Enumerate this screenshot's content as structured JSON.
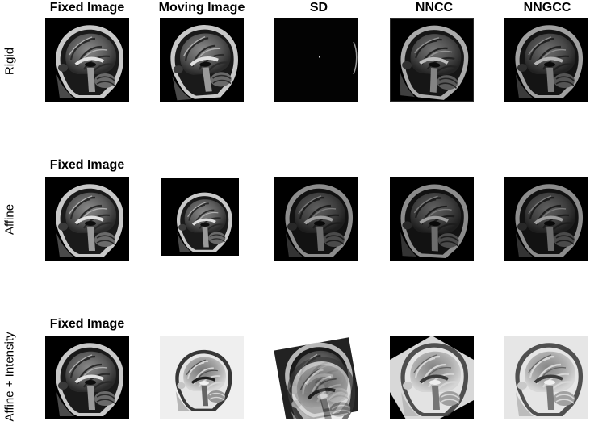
{
  "column_titles": [
    "Fixed Image",
    "Moving Image",
    "SD",
    "NNCC",
    "NNGCC"
  ],
  "row_labels": [
    "Rigid",
    "Affine",
    "Affine + Intensity"
  ],
  "row_subtitles": [
    "Fixed Image",
    "Fixed Image"
  ],
  "colors": {
    "background": "#ffffff",
    "text": "#000000"
  }
}
